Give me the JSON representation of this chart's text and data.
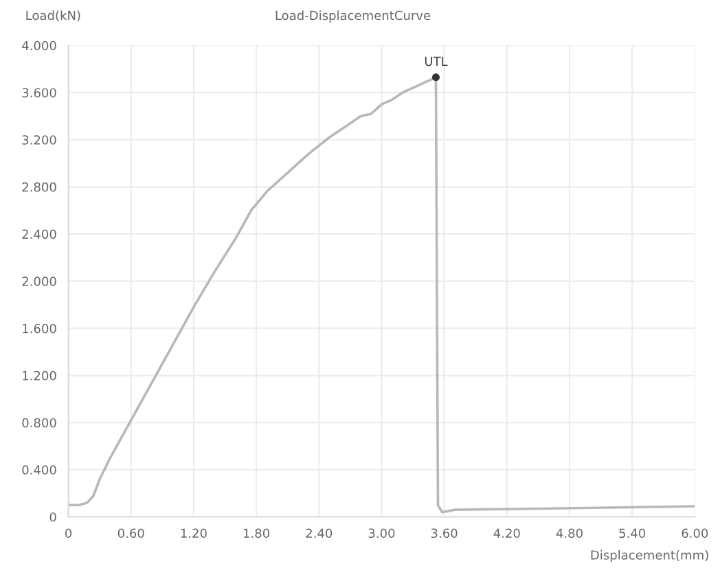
{
  "chart_data": {
    "type": "line",
    "title": "Load-DisplacementCurve",
    "xlabel": "Displacement(mm)",
    "ylabel": "Load(kN)",
    "x": [
      0,
      0.1,
      0.18,
      0.24,
      0.3,
      0.4,
      0.5,
      0.6,
      0.8,
      1.0,
      1.2,
      1.4,
      1.6,
      1.75,
      1.9,
      2.1,
      2.3,
      2.5,
      2.7,
      2.8,
      2.9,
      3.0,
      3.1,
      3.2,
      3.35,
      3.52,
      3.54,
      3.58,
      3.7,
      4.5,
      6.0
    ],
    "series": [
      {
        "color": "#b8b8b8",
        "values": [
          0.1,
          0.1,
          0.12,
          0.18,
          0.32,
          0.5,
          0.66,
          0.82,
          1.14,
          1.46,
          1.78,
          2.08,
          2.36,
          2.6,
          2.76,
          2.92,
          3.08,
          3.22,
          3.34,
          3.4,
          3.42,
          3.5,
          3.54,
          3.6,
          3.66,
          3.73,
          0.1,
          0.04,
          0.06,
          0.07,
          0.09
        ]
      }
    ],
    "annotations": [
      {
        "text": "UTL",
        "x": 3.52,
        "y": 3.73
      }
    ],
    "xlim": [
      0,
      6.0
    ],
    "ylim": [
      0,
      4.0
    ],
    "xticks": [
      0,
      {
        "value": 0.6,
        "label": "0.60"
      },
      {
        "value": 1.2,
        "label": "1.20"
      },
      {
        "value": 1.8,
        "label": "1.80"
      },
      {
        "value": 2.4,
        "label": "2.40"
      },
      {
        "value": 3.0,
        "label": "3.00"
      },
      {
        "value": 3.6,
        "label": "3.60"
      },
      {
        "value": 4.2,
        "label": "4.20"
      },
      {
        "value": 4.8,
        "label": "4.80"
      },
      {
        "value": 5.4,
        "label": "5.40"
      },
      {
        "value": 6.0,
        "label": "6.00"
      }
    ],
    "yticks": [
      0,
      {
        "value": 0.4,
        "label": "0.400"
      },
      {
        "value": 0.8,
        "label": "0.800"
      },
      {
        "value": 1.2,
        "label": "1.200"
      },
      {
        "value": 1.6,
        "label": "1.600"
      },
      {
        "value": 2.0,
        "label": "2.000"
      },
      {
        "value": 2.4,
        "label": "2.400"
      },
      {
        "value": 2.8,
        "label": "2.800"
      },
      {
        "value": 3.2,
        "label": "3.200"
      },
      {
        "value": 3.6,
        "label": "3.600"
      },
      {
        "value": 4.0,
        "label": "4.000"
      }
    ],
    "grid": true,
    "marker": "none",
    "line_style": "solid"
  }
}
